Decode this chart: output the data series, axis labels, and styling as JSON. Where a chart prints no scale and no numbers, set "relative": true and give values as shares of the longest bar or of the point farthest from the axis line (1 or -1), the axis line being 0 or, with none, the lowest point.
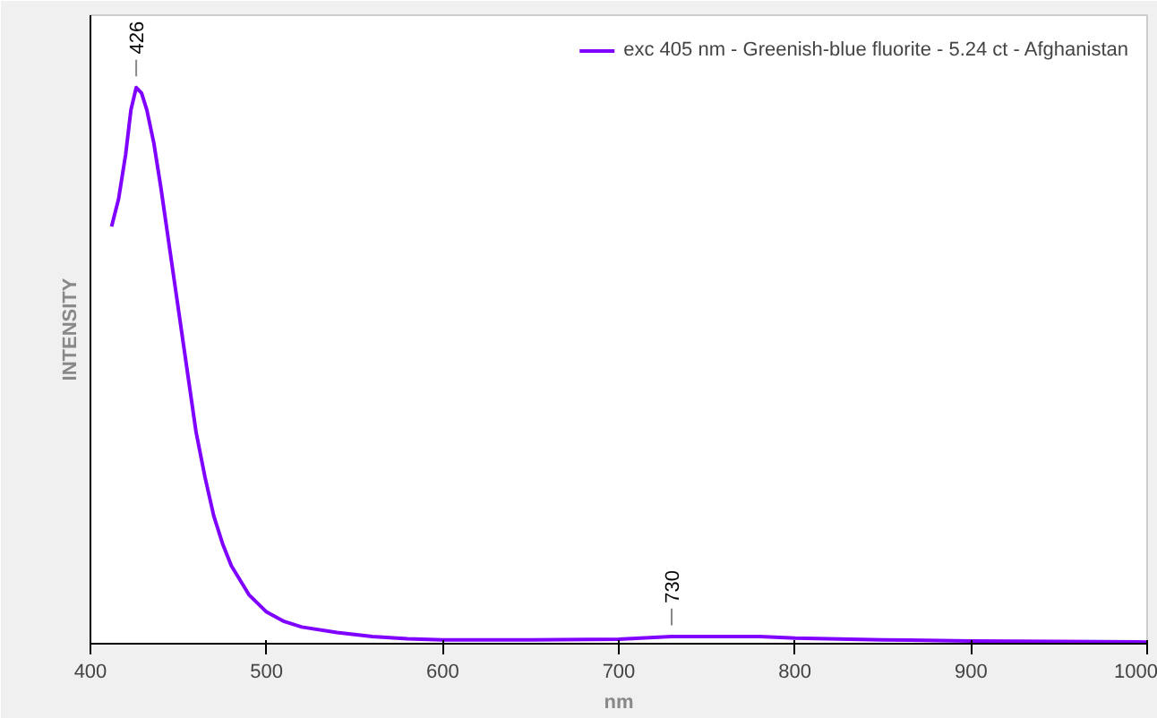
{
  "chart_data": {
    "type": "line",
    "relative": true,
    "xlabel": "nm",
    "ylabel": "INTENSITY",
    "x": [
      412,
      416,
      420,
      423,
      426,
      429,
      432,
      436,
      440,
      445,
      450,
      455,
      460,
      465,
      470,
      475,
      480,
      490,
      500,
      510,
      520,
      540,
      560,
      580,
      600,
      650,
      700,
      730,
      760,
      780,
      800,
      850,
      900,
      950,
      1000
    ],
    "series": [
      {
        "name": "exc 405 nm - Greenish-blue fluorite - 5.24 ct - Afghanistan",
        "color": "#7f00ff",
        "values": [
          0.75,
          0.8,
          0.88,
          0.96,
          1.0,
          0.99,
          0.96,
          0.9,
          0.82,
          0.71,
          0.6,
          0.49,
          0.38,
          0.3,
          0.23,
          0.18,
          0.14,
          0.088,
          0.057,
          0.04,
          0.03,
          0.02,
          0.013,
          0.009,
          0.007,
          0.007,
          0.008,
          0.013,
          0.013,
          0.013,
          0.01,
          0.007,
          0.005,
          0.004,
          0.003
        ]
      }
    ],
    "xlim": [
      400,
      1000
    ],
    "xticks": [
      400,
      500,
      600,
      700,
      800,
      900,
      1000
    ],
    "annotations": [
      {
        "text": "426",
        "x": 426,
        "y": 1.0
      },
      {
        "text": "730",
        "x": 730,
        "y": 0.013
      }
    ],
    "legend": "top right",
    "grid": false
  }
}
